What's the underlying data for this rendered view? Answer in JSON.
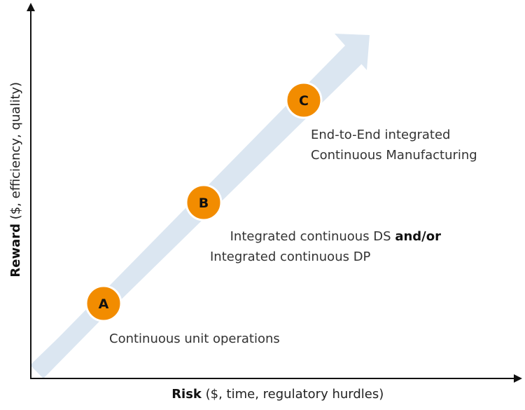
{
  "colors": {
    "arrow": "#dbe6f1",
    "milestone": "#f28c00",
    "axis": "#111111",
    "text": "#333333"
  },
  "y_axis": {
    "title_bold": "Reward",
    "title_rest": " ($, efficiency, quality)"
  },
  "x_axis": {
    "title_bold": "Risk",
    "title_rest": " ($, time, regulatory hurdles)"
  },
  "stages": {
    "a": {
      "letter": "A",
      "line1": "Continuous unit operations"
    },
    "b": {
      "letter": "B",
      "line1_plain": "Integrated continuous DS ",
      "line1_bold": "and/or",
      "line2": "Integrated continuous DP"
    },
    "c": {
      "letter": "C",
      "line1": "End-to-End integrated",
      "line2": "Continuous Manufacturing"
    }
  }
}
